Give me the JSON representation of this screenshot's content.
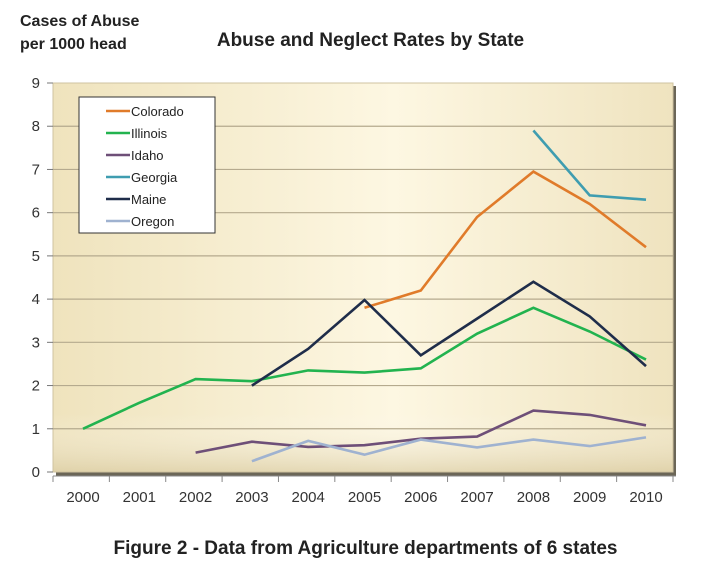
{
  "chart_data": {
    "type": "line",
    "title": "Abuse and Neglect Rates by State",
    "ylabel_lines": [
      "Cases of Abuse",
      "per 1000 head"
    ],
    "xlabel": "",
    "caption": "Figure 2 - Data from Agriculture departments of 6 states",
    "x": [
      2000,
      2001,
      2002,
      2003,
      2004,
      2005,
      2006,
      2007,
      2008,
      2009,
      2010
    ],
    "x_tick_labels": [
      "2000",
      "2001",
      "2002",
      "2003",
      "2004",
      "2005",
      "2006",
      "2007",
      "2008",
      "2009",
      "2010"
    ],
    "ylim": [
      0,
      9
    ],
    "y_ticks": [
      0,
      1,
      2,
      3,
      4,
      5,
      6,
      7,
      8,
      9
    ],
    "grid": true,
    "legend_position": "top-left",
    "series": [
      {
        "name": "Colorado",
        "color": "#e07b2a",
        "values": [
          null,
          null,
          null,
          null,
          null,
          3.8,
          4.2,
          5.9,
          6.95,
          6.2,
          5.2
        ]
      },
      {
        "name": "Illinois",
        "color": "#22b34f",
        "values": [
          1.0,
          1.6,
          2.15,
          2.1,
          2.35,
          2.3,
          2.4,
          3.2,
          3.8,
          3.25,
          2.6
        ]
      },
      {
        "name": "Idaho",
        "color": "#6e4f78",
        "values": [
          null,
          null,
          0.45,
          0.7,
          0.58,
          0.62,
          0.77,
          0.82,
          1.42,
          1.32,
          1.08
        ]
      },
      {
        "name": "Georgia",
        "color": "#3f9db0",
        "values": [
          null,
          null,
          null,
          null,
          null,
          null,
          null,
          null,
          7.9,
          6.4,
          6.3
        ]
      },
      {
        "name": "Maine",
        "color": "#1f2d4a",
        "values": [
          null,
          null,
          null,
          2.0,
          2.85,
          3.98,
          2.7,
          3.55,
          4.4,
          3.6,
          2.45
        ]
      },
      {
        "name": "Oregon",
        "color": "#9fb2d0",
        "values": [
          null,
          null,
          null,
          0.25,
          0.72,
          0.4,
          0.75,
          0.57,
          0.75,
          0.6,
          0.8
        ]
      }
    ],
    "colors": {
      "plot_bg_light": "#fdf6dc",
      "plot_bg_dark": "#e8dab0",
      "gridline": "#b9ae92",
      "frame_shadow": "#555555"
    }
  }
}
